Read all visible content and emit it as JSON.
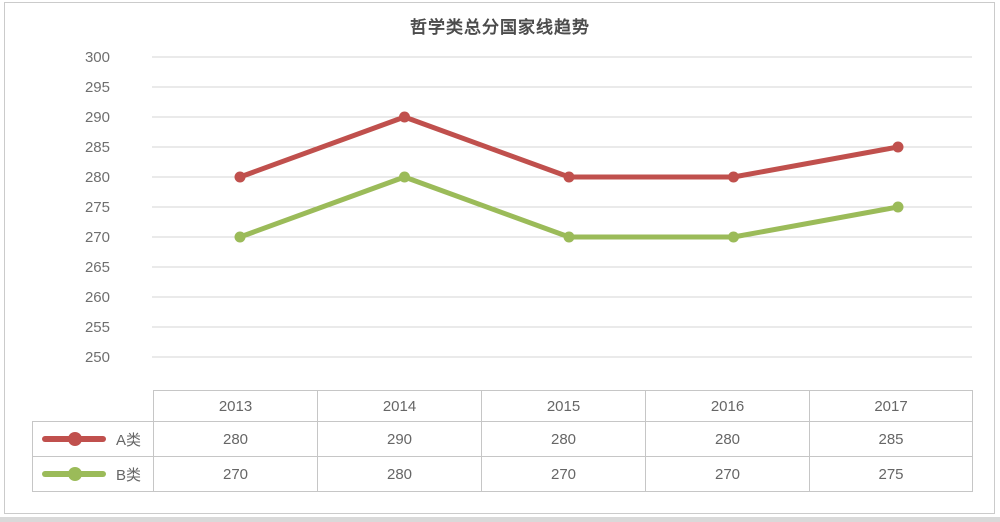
{
  "chart_data": {
    "type": "line",
    "title": "哲学类总分国家线趋势",
    "categories": [
      "2013",
      "2014",
      "2015",
      "2016",
      "2017"
    ],
    "series": [
      {
        "name": "A类",
        "color": "#c0504d",
        "values": [
          280,
          290,
          280,
          280,
          285
        ]
      },
      {
        "name": "B类",
        "color": "#9bbb59",
        "values": [
          270,
          280,
          270,
          270,
          275
        ]
      }
    ],
    "ylim": [
      250,
      300
    ],
    "ytick_step": 5,
    "yticks": [
      300,
      295,
      290,
      285,
      280,
      275,
      270,
      265,
      260,
      255,
      250
    ],
    "grid": "horizontal-only",
    "legend_position": "table-left-column",
    "colors": {
      "gridline": "#d6d6d6",
      "axis_label": "#6f6f6f",
      "title": "#4c4c4c",
      "table_border": "#c6c6c6",
      "frame_border": "#cbcbcb"
    }
  },
  "table": {
    "corner_label": "",
    "columns": [
      "2013",
      "2014",
      "2015",
      "2016",
      "2017"
    ],
    "rows": [
      {
        "label": "A类",
        "values": [
          "280",
          "290",
          "280",
          "280",
          "285"
        ]
      },
      {
        "label": "B类",
        "values": [
          "270",
          "280",
          "270",
          "270",
          "275"
        ]
      }
    ]
  }
}
